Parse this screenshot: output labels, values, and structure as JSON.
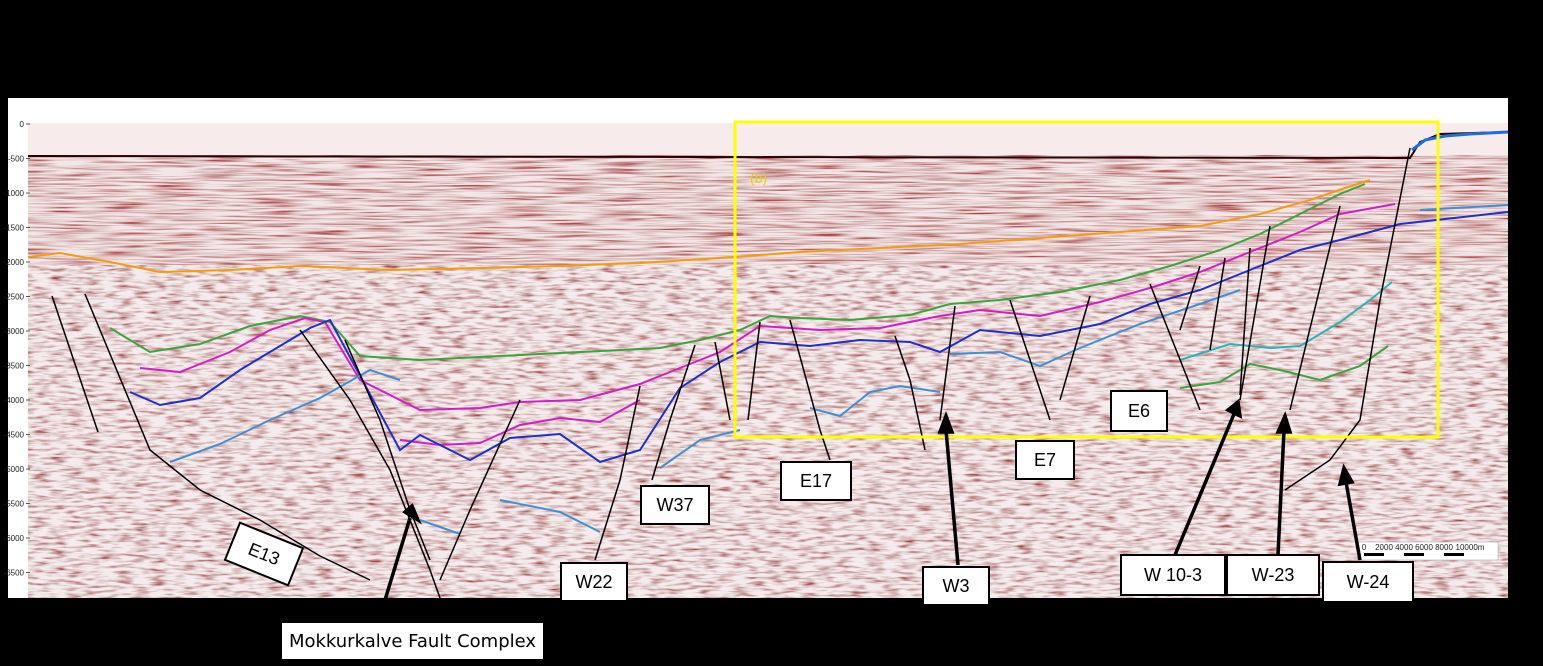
{
  "colors": {
    "background": "#000000",
    "highlight_box": "#ffff00",
    "horizon_orange": "#f39c12",
    "horizon_green": "#3aa53a",
    "horizon_magenta": "#d21ec8",
    "horizon_blue": "#1f2fc8",
    "horizon_lightblue": "#3f8fd6",
    "horizon_cyan": "#2ab2b8",
    "faults": "#000000"
  },
  "depth_axis": {
    "ticks": [
      "0",
      "-500",
      "-1000",
      "-1500",
      "-2000",
      "-2500",
      "-3000",
      "-3500",
      "-4000",
      "-4500",
      "-5000",
      "-5500",
      "-6000",
      "-6500"
    ]
  },
  "scale_bar": {
    "ticks": [
      "0",
      "2000",
      "4000",
      "6000",
      "8000",
      "10000m"
    ]
  },
  "highlight_label": "(b)",
  "labels": {
    "e13": "E13",
    "w22": "W22",
    "w37": "W37",
    "e17": "E17",
    "w3": "W3",
    "e7": "E7",
    "e6": "E6",
    "w10_3": "W 10-3",
    "w23": "W-23",
    "w24": "W-24",
    "mokkurkalve": "Mokkurkalve Fault Complex"
  }
}
